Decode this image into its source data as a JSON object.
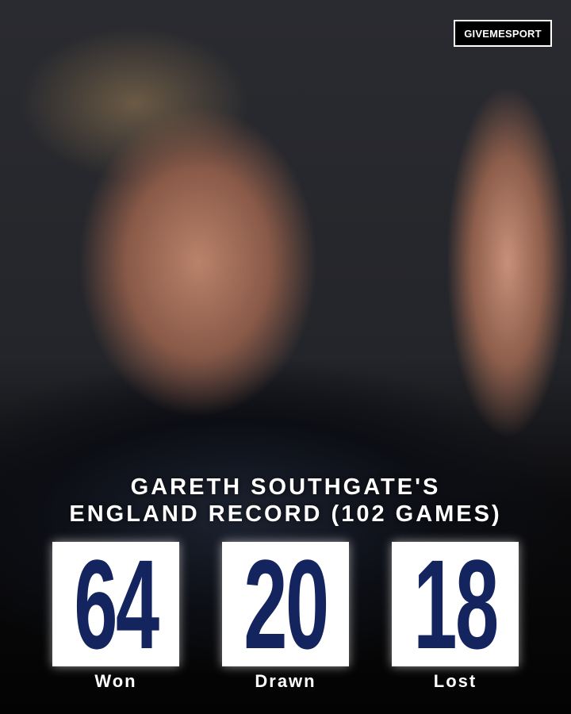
{
  "brand": {
    "logo_text": "GIVEMESPORT"
  },
  "headline": {
    "line1": "GARETH SOUTHGATE'S",
    "line2": "ENGLAND RECORD (102 GAMES)"
  },
  "stats": [
    {
      "value": "64",
      "label": "Won"
    },
    {
      "value": "20",
      "label": "Drawn"
    },
    {
      "value": "18",
      "label": "Lost"
    }
  ],
  "colors": {
    "number": "#13245e",
    "box": "#ffffff",
    "background": "#050505"
  }
}
